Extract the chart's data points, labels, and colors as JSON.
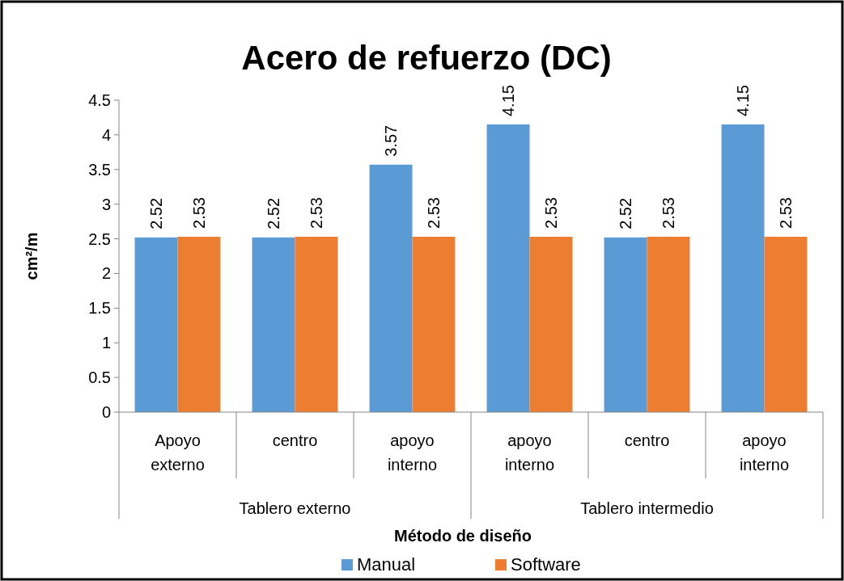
{
  "chart_data": {
    "type": "bar",
    "title": "Acero de refuerzo (DC)",
    "xlabel": "Método de diseño",
    "ylabel": "cm²/m",
    "categories": [
      "Apoyo externo",
      "centro",
      "apoyo interno",
      "apoyo interno",
      "centro",
      "apoyo interno"
    ],
    "annotations": [
      "Tablero externo",
      "Tablero intermedio"
    ],
    "series": [
      {
        "name": "Manual",
        "color": "#5b9bd5",
        "values": [
          2.52,
          2.52,
          3.57,
          4.15,
          2.52,
          4.15
        ]
      },
      {
        "name": "Software",
        "color": "#ed7d31",
        "values": [
          2.53,
          2.53,
          2.53,
          2.53,
          2.53,
          2.53
        ]
      }
    ],
    "ylim": [
      0,
      4.5
    ],
    "yticks": [
      0,
      0.5,
      1,
      1.5,
      2,
      2.5,
      3,
      3.5,
      4,
      4.5
    ],
    "data_labels": true,
    "legend": "bottom",
    "grid": false
  }
}
